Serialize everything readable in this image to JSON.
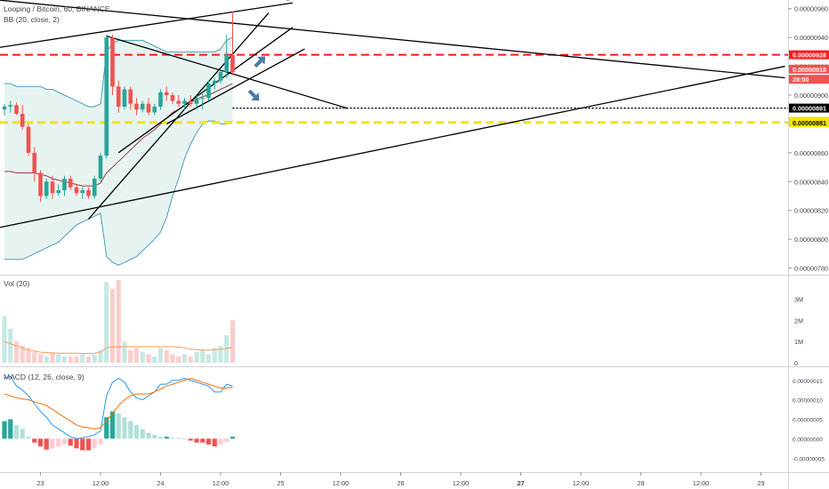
{
  "header": {
    "symbol": "Looping / Bitcoin, 60, BINANCE",
    "bb_label": "BB (20, close, 2)",
    "vol_label": "Vol (20)",
    "macd_label": "MACD (12, 26, close, 9)"
  },
  "colors": {
    "up": "#26a69a",
    "down": "#ef5350",
    "bb_band": "#4a9fb5",
    "bb_fill": "#e6f3f1",
    "bb_basis": "#a23b3b",
    "vol_ma": "#ff9a57",
    "macd_line": "#2196f3",
    "signal_line": "#ff6d00",
    "red_dashed": "#ff1a1a",
    "yellow_dashed": "#f2e600",
    "arrow": "#4a7aa7"
  },
  "chart_data": {
    "type": "candlestick",
    "price_axis": {
      "ticks": [
        "0.00000960",
        "0.00000940",
        "0.00000920",
        "0.00000900",
        "0.00000880",
        "0.00000860",
        "0.00000840",
        "0.00000820",
        "0.00000800",
        "0.00000780"
      ],
      "ylim": [
        7.76e-06,
        9.66e-06
      ]
    },
    "labels": [
      {
        "text": "0.00000928",
        "value": 9.28e-06,
        "bg": "#ff1a1a",
        "fg": "#ffffff"
      },
      {
        "text": "0.00000918",
        "value": 9.18e-06,
        "bg": "#ef5350",
        "fg": "#ffffff"
      },
      {
        "text": "28:00",
        "value": 9.11e-06,
        "bg": "#ef5350",
        "fg": "#ffffff"
      },
      {
        "text": "0.00000891",
        "value": 8.91e-06,
        "bg": "#000000",
        "fg": "#ffffff"
      },
      {
        "text": "0.00000881",
        "value": 8.818e-06,
        "bg": "#f2e600",
        "fg": "#000000"
      },
      {
        "text": "0.00000881",
        "value": 8.808e-06,
        "bg": "#f2e600",
        "fg": "#000000"
      }
    ],
    "horizontal_levels": [
      {
        "value": 9.28e-06,
        "style": "red-dashed"
      },
      {
        "value": 8.91e-06,
        "style": "black-dotted"
      },
      {
        "value": 8.81e-06,
        "style": "yellow-dashed"
      }
    ],
    "x_axis": {
      "labels": [
        {
          "text": "23",
          "bar": 6
        },
        {
          "text": "12:00",
          "bar": 16
        },
        {
          "text": "24",
          "bar": 26
        },
        {
          "text": "12:00",
          "bar": 36
        },
        {
          "text": "25",
          "bar": 46
        },
        {
          "text": "12:00",
          "bar": 56
        },
        {
          "text": "26",
          "bar": 66
        },
        {
          "text": "12:00",
          "bar": 76
        },
        {
          "text": "27",
          "bar": 86,
          "bold": true
        },
        {
          "text": "12:00",
          "bar": 96
        },
        {
          "text": "28",
          "bar": 106
        },
        {
          "text": "12:00",
          "bar": 116
        },
        {
          "text": "29",
          "bar": 126
        }
      ]
    },
    "candles": [
      [
        8.9,
        8.94,
        8.86,
        8.92
      ],
      [
        8.92,
        8.96,
        8.88,
        8.93
      ],
      [
        8.93,
        8.95,
        8.86,
        8.87
      ],
      [
        8.87,
        8.93,
        8.76,
        8.78
      ],
      [
        8.78,
        8.8,
        8.58,
        8.6
      ],
      [
        8.6,
        8.64,
        8.4,
        8.46
      ],
      [
        8.46,
        8.48,
        8.26,
        8.3
      ],
      [
        8.3,
        8.42,
        8.28,
        8.4
      ],
      [
        8.4,
        8.44,
        8.28,
        8.32
      ],
      [
        8.32,
        8.38,
        8.3,
        8.34
      ],
      [
        8.34,
        8.44,
        8.3,
        8.42
      ],
      [
        8.42,
        8.44,
        8.34,
        8.36
      ],
      [
        8.36,
        8.38,
        8.3,
        8.32
      ],
      [
        8.32,
        8.36,
        8.28,
        8.34
      ],
      [
        8.34,
        8.36,
        8.28,
        8.3
      ],
      [
        8.3,
        8.44,
        8.28,
        8.42
      ],
      [
        8.42,
        8.6,
        8.4,
        8.58
      ],
      [
        8.58,
        9.42,
        8.56,
        9.4
      ],
      [
        9.4,
        9.42,
        9.0,
        9.06
      ],
      [
        9.06,
        9.1,
        8.88,
        8.92
      ],
      [
        8.92,
        9.06,
        8.9,
        9.04
      ],
      [
        9.04,
        9.06,
        8.9,
        8.94
      ],
      [
        8.94,
        8.98,
        8.86,
        8.9
      ],
      [
        8.9,
        8.96,
        8.88,
        8.94
      ],
      [
        8.94,
        8.98,
        8.86,
        8.88
      ],
      [
        8.88,
        8.94,
        8.86,
        8.92
      ],
      [
        8.92,
        9.04,
        8.9,
        9.02
      ],
      [
        9.02,
        9.06,
        8.96,
        9.0
      ],
      [
        9.0,
        9.02,
        8.94,
        8.96
      ],
      [
        8.96,
        9.0,
        8.92,
        8.94
      ],
      [
        8.94,
        8.98,
        8.9,
        8.96
      ],
      [
        8.96,
        9.0,
        8.92,
        8.94
      ],
      [
        8.94,
        9.0,
        8.9,
        8.98
      ],
      [
        8.98,
        9.02,
        8.9,
        8.98
      ],
      [
        8.98,
        9.1,
        8.96,
        9.08
      ],
      [
        9.08,
        9.12,
        9.04,
        9.1
      ],
      [
        9.1,
        9.18,
        9.08,
        9.16
      ],
      [
        9.16,
        9.42,
        9.12,
        9.28
      ],
      [
        9.28,
        9.58,
        9.14,
        9.16
      ]
    ],
    "volume": {
      "ticks": [
        "3M",
        "2M",
        "1M",
        "0"
      ],
      "ylim": [
        0,
        3900000
      ],
      "values": [
        2.2,
        1.6,
        1.0,
        0.8,
        0.7,
        0.5,
        0.4,
        0.3,
        0.5,
        0.4,
        0.3,
        0.3,
        0.3,
        0.4,
        0.3,
        0.4,
        0.6,
        3.8,
        3.5,
        3.9,
        1.0,
        0.6,
        0.7,
        0.5,
        0.4,
        0.3,
        0.7,
        0.6,
        0.4,
        0.3,
        0.4,
        0.3,
        0.5,
        0.6,
        0.4,
        0.7,
        0.8,
        1.3,
        2.0
      ],
      "ma": [
        1.0,
        0.9,
        0.8,
        0.7,
        0.6,
        0.55,
        0.5,
        0.48,
        0.46,
        0.45,
        0.45,
        0.45,
        0.45,
        0.44,
        0.44,
        0.45,
        0.5,
        0.7,
        0.75,
        0.75,
        0.76,
        0.76,
        0.76,
        0.76,
        0.76,
        0.76,
        0.76,
        0.76,
        0.76,
        0.74,
        0.7,
        0.65,
        0.62,
        0.6,
        0.6,
        0.62,
        0.64,
        0.68,
        0.72
      ]
    },
    "macd": {
      "ticks": [
        "0.00000015",
        "0.00000010",
        "0.00000005",
        "0.00000000",
        "-0.00000005"
      ],
      "ylim": [
        -7e-08,
        1.7e-07
      ],
      "hist": [
        4.5,
        5.0,
        3.5,
        2.5,
        0.5,
        -1.0,
        -2.0,
        -2.8,
        -2.5,
        -2.0,
        -1.5,
        -1.8,
        -2.5,
        -3.0,
        -3.0,
        -2.5,
        -1.5,
        5.5,
        7.0,
        6.5,
        5.5,
        4.5,
        3.5,
        2.5,
        1.5,
        1.0,
        0.5,
        0.5,
        0.3,
        0.2,
        0.0,
        -0.5,
        -1.0,
        -1.0,
        -1.5,
        -2.0,
        -1.5,
        -0.8,
        0.5
      ],
      "macd_line": [
        15.5,
        16.0,
        13.5,
        12.5,
        11.0,
        9.0,
        7.0,
        5.5,
        3.5,
        2.5,
        1.5,
        0.5,
        0.0,
        0.2,
        0.5,
        1.0,
        2.0,
        11.0,
        14.5,
        15.5,
        14.5,
        12.0,
        10.5,
        10.0,
        11.0,
        12.0,
        14.0,
        14.0,
        15.0,
        15.0,
        15.5,
        15.0,
        14.5,
        14.0,
        13.5,
        12.0,
        12.0,
        14.0,
        13.5
      ],
      "signal_line": [
        11.5,
        11.0,
        10.5,
        10.2,
        10.0,
        9.5,
        9.0,
        8.5,
        7.5,
        6.5,
        5.5,
        4.5,
        3.5,
        3.0,
        2.8,
        2.5,
        2.8,
        4.5,
        6.5,
        8.5,
        10.0,
        11.0,
        11.5,
        11.5,
        11.5,
        12.0,
        12.8,
        13.5,
        14.0,
        14.5,
        15.0,
        15.5,
        15.0,
        14.5,
        14.0,
        13.5,
        13.0,
        13.0,
        13.2
      ]
    },
    "bollinger": {
      "upper": [
        9.08,
        9.08,
        9.06,
        9.06,
        9.06,
        9.06,
        9.06,
        9.04,
        9.04,
        9.02,
        9.0,
        8.98,
        8.96,
        8.94,
        8.92,
        8.92,
        8.94,
        9.3,
        9.36,
        9.38,
        9.38,
        9.38,
        9.38,
        9.38,
        9.36,
        9.34,
        9.32,
        9.3,
        9.3,
        9.3,
        9.3,
        9.3,
        9.3,
        9.3,
        9.3,
        9.3,
        9.32,
        9.38,
        9.4
      ],
      "lower": [
        7.86,
        7.86,
        7.86,
        7.86,
        7.88,
        7.9,
        7.92,
        7.94,
        7.96,
        7.98,
        8.02,
        8.06,
        8.1,
        8.12,
        8.14,
        8.16,
        8.18,
        7.88,
        7.84,
        7.82,
        7.84,
        7.86,
        7.88,
        7.92,
        7.96,
        8.0,
        8.05,
        8.15,
        8.3,
        8.42,
        8.56,
        8.66,
        8.74,
        8.8,
        8.82,
        8.82,
        8.8,
        8.8,
        8.82
      ],
      "basis": [
        8.47,
        8.47,
        8.46,
        8.46,
        8.46,
        8.46,
        8.45,
        8.44,
        8.42,
        8.41,
        8.4,
        8.39,
        8.38,
        8.37,
        8.37,
        8.37,
        8.39,
        8.46,
        8.5,
        8.54,
        8.58,
        8.62,
        8.66,
        8.7,
        8.73,
        8.76,
        8.8,
        8.84,
        8.88,
        8.9,
        8.93,
        8.95,
        8.97,
        8.99,
        9.0,
        9.02,
        9.04,
        9.06,
        9.08
      ]
    },
    "trendlines": [
      {
        "p1": [
          -1,
          9.66
        ],
        "p2": [
          130,
          9.12
        ],
        "color": "#000000"
      },
      {
        "p1": [
          -1,
          9.33
        ],
        "p2": [
          48,
          9.64
        ],
        "color": "#000000"
      },
      {
        "p1": [
          47,
          9.66
        ],
        "p2": [
          96,
          10.0
        ],
        "color": "#000000"
      },
      {
        "p1": [
          -1,
          8.08
        ],
        "p2": [
          130,
          9.2
        ],
        "color": "#000000"
      },
      {
        "p1": [
          17,
          9.41
        ],
        "p2": [
          57,
          8.91
        ],
        "color": "#000000"
      },
      {
        "p1": [
          14,
          8.14
        ],
        "p2": [
          44,
          9.57
        ],
        "color": "#000000"
      },
      {
        "p1": [
          19,
          8.6
        ],
        "p2": [
          48,
          9.47
        ],
        "color": "#000000"
      },
      {
        "p1": [
          27,
          8.8
        ],
        "p2": [
          50,
          9.32
        ],
        "color": "#000000"
      }
    ],
    "arrows": [
      {
        "bar": 42.5,
        "value": 9.23,
        "dir": "up"
      },
      {
        "bar": 41.5,
        "value": 9.0,
        "dir": "down"
      }
    ]
  }
}
